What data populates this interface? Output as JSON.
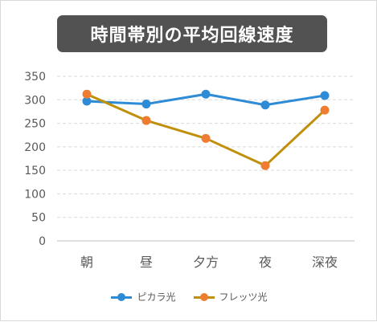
{
  "chart_data": {
    "type": "line",
    "title": "時間帯別の平均回線速度",
    "categories": [
      "朝",
      "昼",
      "夕方",
      "夜",
      "深夜"
    ],
    "ylim": [
      0,
      350
    ],
    "yticks": [
      0,
      50,
      100,
      150,
      200,
      250,
      300,
      350
    ],
    "grid": "horizontal dashed",
    "legend_position": "bottom",
    "series": [
      {
        "name": "ピカラ光",
        "color": "#2e8bd6",
        "values": [
          297,
          291,
          312,
          289,
          309
        ]
      },
      {
        "name": "フレッツ光",
        "color": "#c0900d",
        "values": [
          312,
          256,
          218,
          160,
          278
        ]
      }
    ],
    "marker_color_flets": "#ee7d31"
  }
}
